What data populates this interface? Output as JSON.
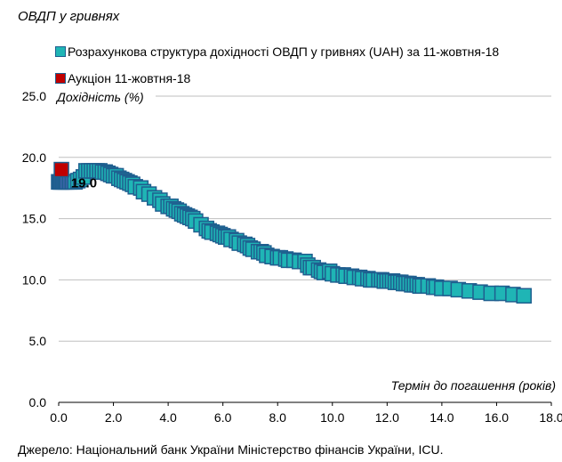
{
  "title": "ОВДП у гривнях",
  "legend": {
    "series1": "Розрахункова структура дохідності ОВДП у гривнях (UAH) за 11-жовтня-18",
    "series2": "Аукціон 11-жовтня-18"
  },
  "source": "Джерело: Національний банк України Міністерство фінансів України, ICU.",
  "colors": {
    "series1_fill": "#1fb5b5",
    "series1_edge": "#1f5f8f",
    "series2_fill": "#c00000",
    "series2_edge": "#1f5f8f",
    "dark_marker": "#3a64a8"
  },
  "chart_data": {
    "type": "scatter",
    "xlabel": "Термін до погашення (років)",
    "ylabel": "Дохідність (%)",
    "xlim": [
      0,
      18
    ],
    "ylim": [
      0,
      25
    ],
    "x_ticks": [
      "0.0",
      "2.0",
      "4.0",
      "6.0",
      "8.0",
      "10.0",
      "12.0",
      "14.0",
      "16.0",
      "18.0"
    ],
    "y_ticks": [
      "0.0",
      "5.0",
      "10.0",
      "15.0",
      "20.0",
      "25.0"
    ],
    "grid": "horizontal",
    "annotations": [
      {
        "text": "19.0",
        "x": 0.45,
        "y": 18.0
      }
    ],
    "series": [
      {
        "name": "Розрахункова структура дохідності ОВДП у гривнях (UAH) за 11-жовтня-18",
        "marker": "square",
        "x": [
          0.0,
          0.02,
          0.05,
          0.08,
          0.1,
          0.15,
          0.2,
          0.25,
          0.3,
          0.4,
          0.5,
          0.6,
          0.7,
          0.8,
          0.9,
          1.0,
          1.1,
          1.2,
          1.3,
          1.4,
          1.5,
          1.6,
          1.7,
          1.8,
          1.9,
          2.0,
          2.1,
          2.2,
          2.3,
          2.4,
          2.5,
          2.6,
          2.7,
          2.8,
          3.0,
          3.1,
          3.3,
          3.5,
          3.7,
          3.8,
          4.0,
          4.1,
          4.2,
          4.3,
          4.4,
          4.5,
          4.6,
          4.7,
          4.8,
          4.9,
          5.0,
          5.2,
          5.4,
          5.5,
          5.6,
          5.8,
          5.9,
          6.0,
          6.1,
          6.2,
          6.3,
          6.5,
          6.6,
          6.8,
          6.9,
          7.0,
          7.1,
          7.3,
          7.4,
          7.5,
          7.6,
          7.8,
          8.0,
          8.1,
          8.3,
          8.4,
          8.6,
          8.8,
          9.0,
          9.1,
          9.2,
          9.3,
          9.5,
          9.6,
          9.7,
          9.9,
          10.0,
          10.2,
          10.4,
          10.5,
          10.7,
          10.8,
          11.0,
          11.1,
          11.3,
          11.4,
          11.5,
          11.7,
          11.8,
          11.9,
          12.0,
          12.1,
          12.2,
          12.3,
          12.4,
          12.5,
          12.6,
          12.7,
          12.8,
          12.9,
          13.0,
          13.1,
          13.2,
          13.3,
          13.5,
          13.7,
          13.8,
          14.0,
          14.3,
          14.6,
          15.0,
          15.4,
          15.8,
          16.2,
          16.6,
          17.0
        ],
        "y": [
          18.0,
          18.0,
          18.0,
          18.0,
          18.0,
          18.0,
          18.0,
          18.0,
          18.0,
          18.0,
          18.0,
          18.0,
          18.1,
          18.2,
          18.4,
          18.9,
          18.9,
          18.9,
          18.9,
          18.9,
          18.9,
          18.8,
          18.8,
          18.7,
          18.6,
          18.5,
          18.5,
          18.3,
          18.2,
          18.1,
          18.0,
          17.9,
          17.8,
          17.6,
          17.5,
          17.2,
          17.0,
          16.7,
          16.5,
          16.2,
          16.0,
          16.0,
          15.8,
          15.7,
          15.6,
          15.4,
          15.3,
          15.2,
          15.1,
          15.0,
          14.8,
          14.5,
          14.2,
          14.0,
          13.9,
          13.8,
          13.7,
          13.6,
          13.5,
          13.5,
          13.3,
          13.2,
          13.0,
          12.9,
          12.8,
          12.6,
          12.5,
          12.3,
          12.3,
          12.2,
          12.0,
          11.9,
          11.8,
          11.8,
          11.7,
          11.6,
          11.6,
          11.5,
          11.5,
          11.2,
          11.0,
          11.0,
          10.8,
          10.7,
          10.6,
          10.7,
          10.5,
          10.4,
          10.4,
          10.3,
          10.3,
          10.2,
          10.2,
          10.1,
          10.1,
          10.0,
          10.0,
          10.0,
          10.0,
          9.9,
          9.9,
          9.9,
          9.9,
          9.8,
          9.8,
          9.8,
          9.7,
          9.7,
          9.7,
          9.6,
          9.6,
          9.6,
          9.5,
          9.5,
          9.5,
          9.4,
          9.4,
          9.3,
          9.3,
          9.2,
          9.1,
          9.0,
          8.9,
          8.9,
          8.8,
          8.7
        ]
      },
      {
        "name": "Аукціон 11-жовтня-18",
        "marker": "square",
        "x": [
          0.1
        ],
        "y": [
          19.0
        ]
      }
    ]
  }
}
